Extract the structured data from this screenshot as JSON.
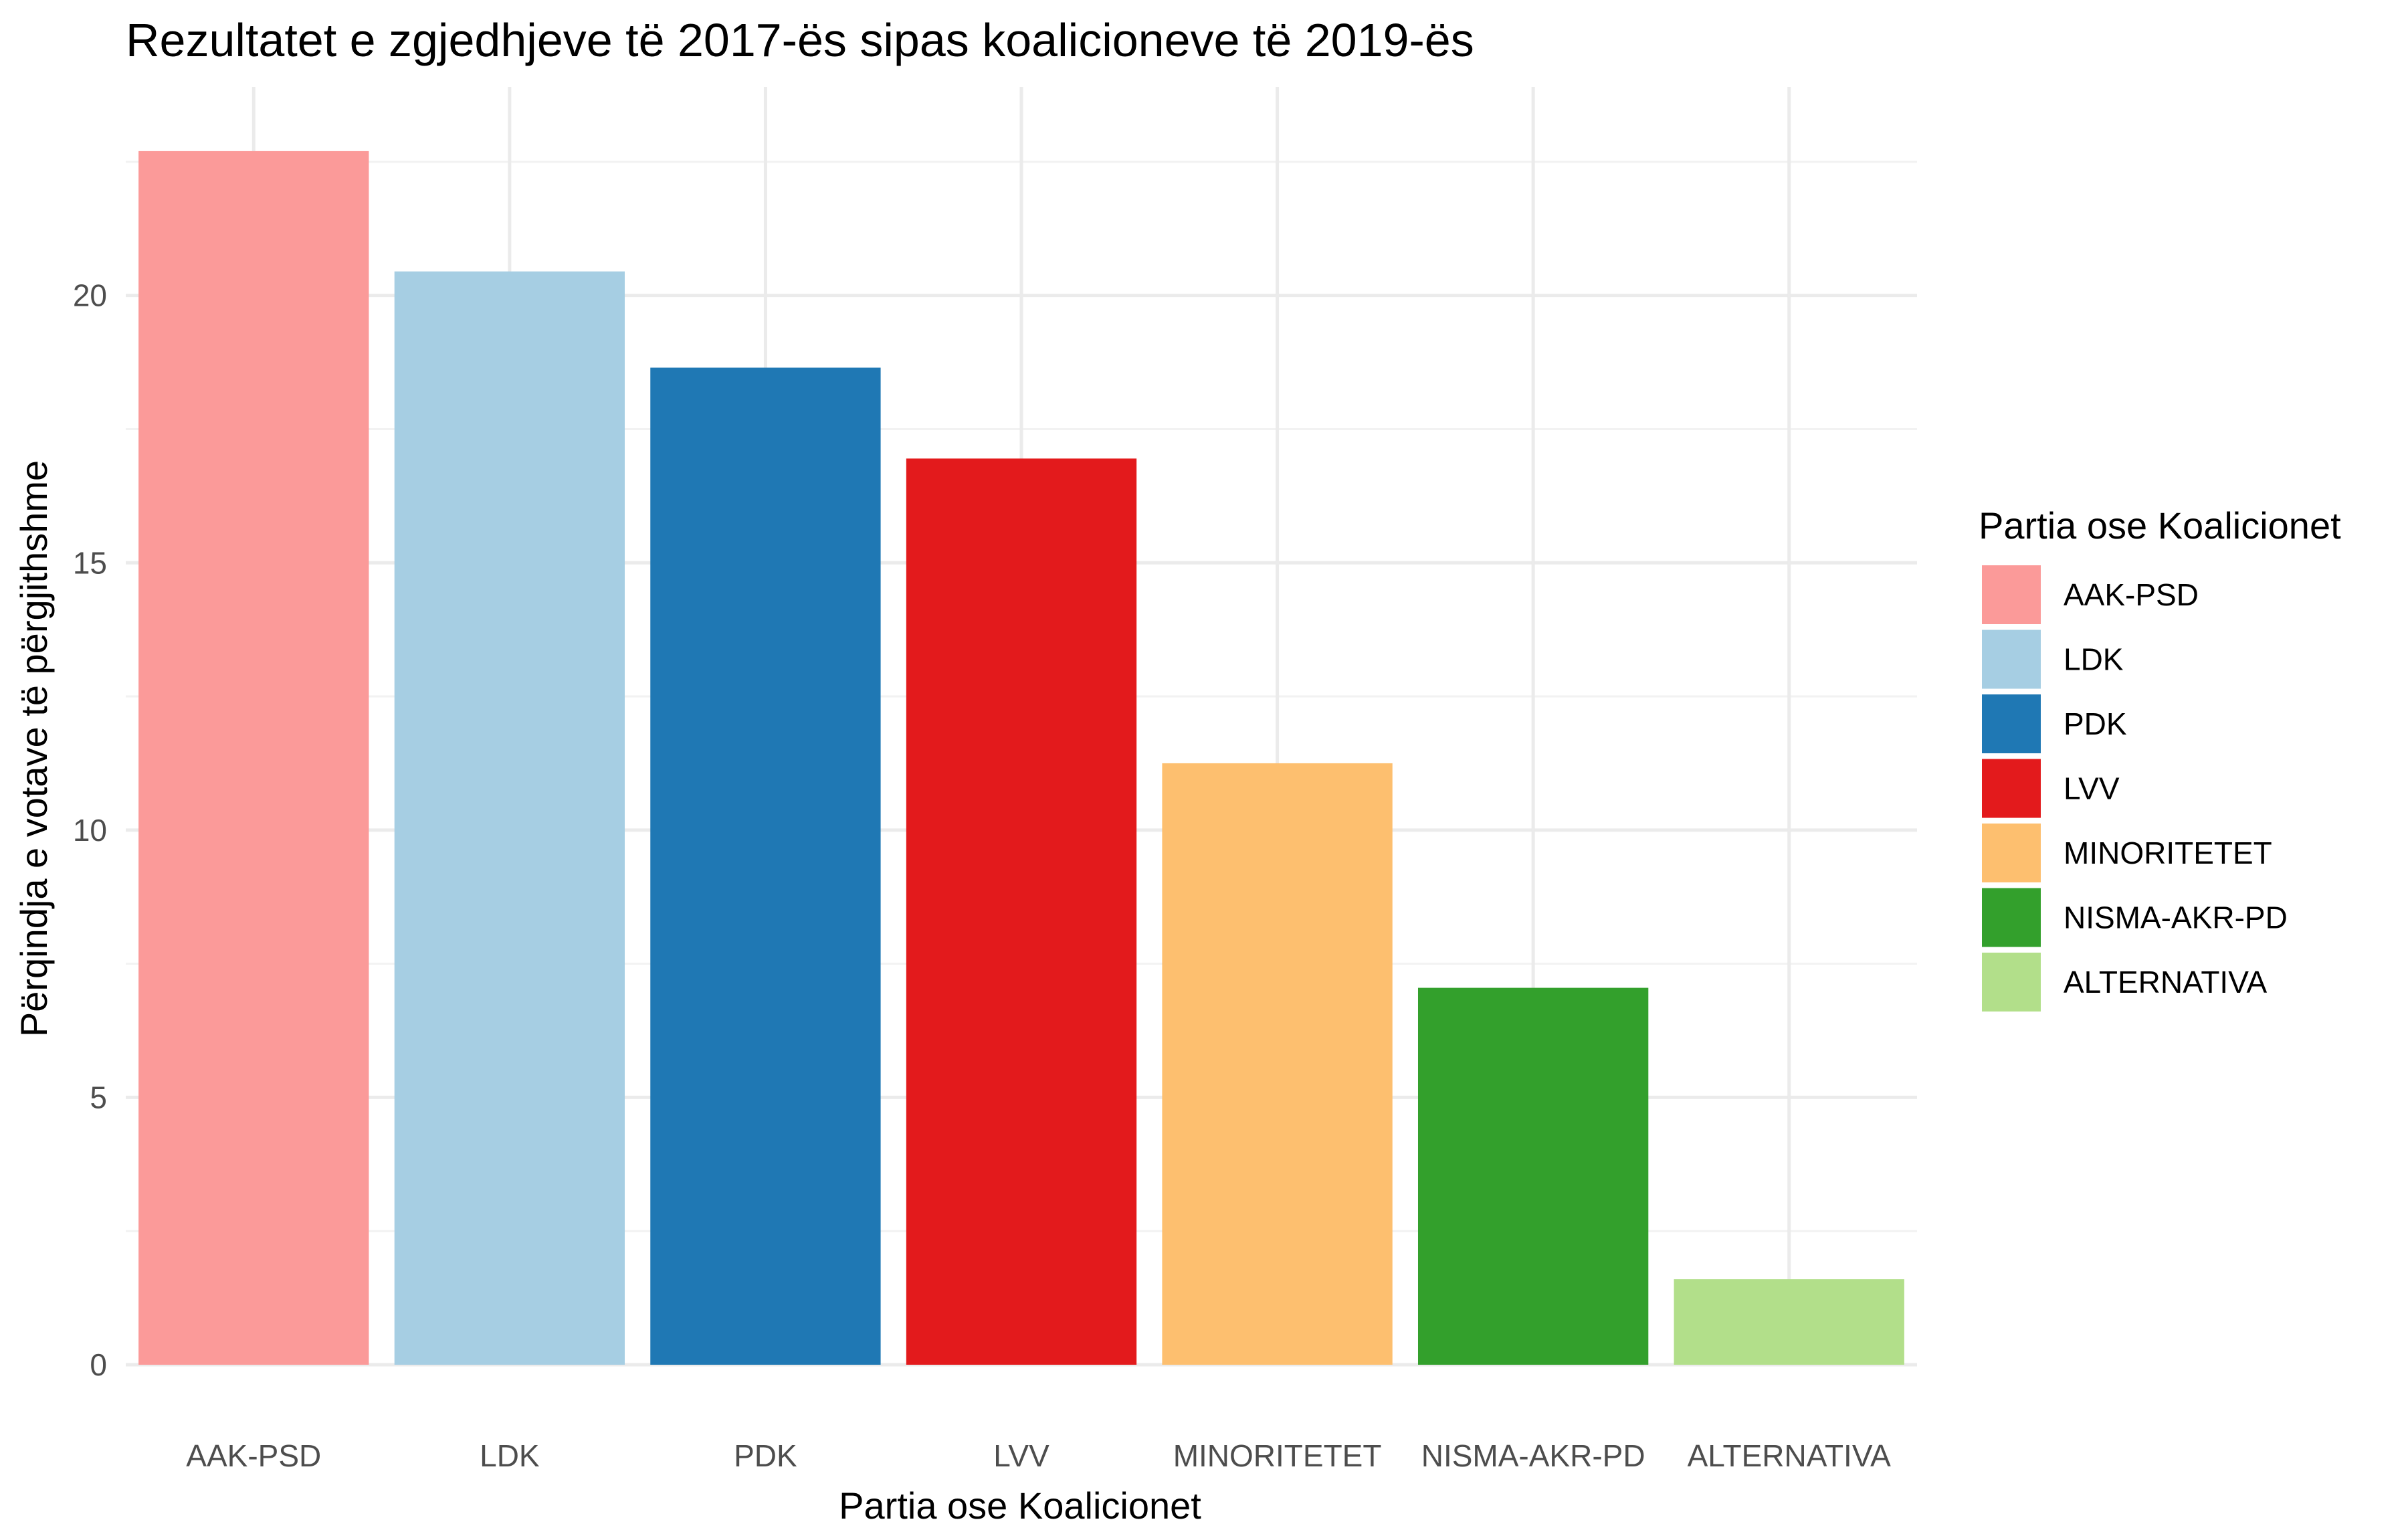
{
  "chart_data": {
    "type": "bar",
    "title": "Rezultatet e zgjedhjeve të 2017-ës sipas koalicioneve të 2019-ës",
    "xlabel": "Partia ose Koalicionet",
    "ylabel": "Përqindja e votave të përgjithshme",
    "categories": [
      "AAK-PSD",
      "LDK",
      "PDK",
      "LVV",
      "MINORITETET",
      "NISMA-AKR-PD",
      "ALTERNATIVA"
    ],
    "values": [
      22.7,
      20.45,
      18.65,
      16.95,
      11.25,
      7.05,
      1.6
    ],
    "colors": [
      "#fb9a99",
      "#a6cee3",
      "#1f78b4",
      "#e31a1c",
      "#fdbf6f",
      "#33a02c",
      "#b2df8a"
    ],
    "ylim": [
      0,
      23.9
    ],
    "yticks": [
      0,
      5,
      10,
      15,
      20
    ],
    "grid": true,
    "legend": {
      "title": "Partia ose Koalicionet",
      "position": "right"
    }
  }
}
